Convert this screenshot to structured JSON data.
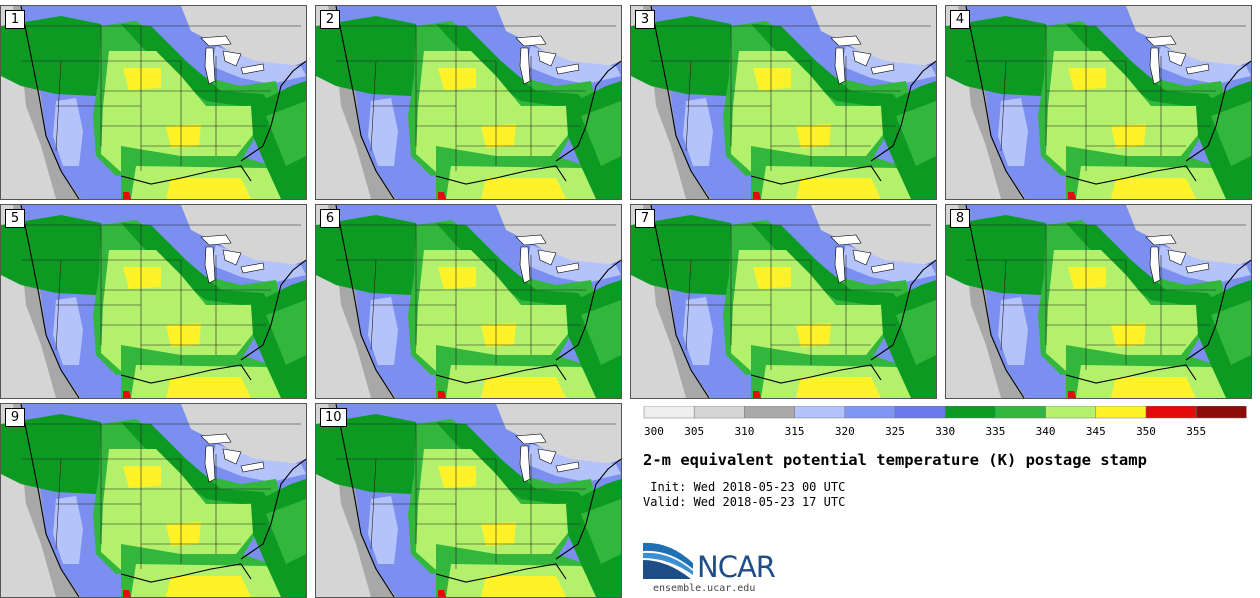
{
  "panels": [
    "1",
    "2",
    "3",
    "4",
    "5",
    "6",
    "7",
    "8",
    "9",
    "10"
  ],
  "colorbar": {
    "ticks": [
      "300",
      "305",
      "310",
      "315",
      "320",
      "325",
      "330",
      "335",
      "340",
      "345",
      "350",
      "355"
    ],
    "colors": [
      "#eeeeee",
      "#d5d5d5",
      "#a8a8a8",
      "#b4c3fa",
      "#8096f5",
      "#6879ea",
      "#0c9a23",
      "#33b63c",
      "#b3f16c",
      "#fff228",
      "#e60b0b",
      "#8c0b0b"
    ]
  },
  "title": "2-m equivalent potential temperature (K) postage stamp",
  "init_text": " Init: Wed 2018-05-23 00 UTC",
  "valid_text": "Valid: Wed 2018-05-23 17 UTC",
  "logo": {
    "text": "NCAR",
    "url": "ensemble.ucar.edu"
  },
  "map_colors": {
    "gray": "#a8a8a8",
    "lightgray": "#d5d5d5",
    "paleblue": "#b4c3fa",
    "blue": "#7b8ff0",
    "darkgreen": "#0c9a23",
    "green": "#33b63c",
    "lightgreen": "#b3f16c",
    "yellow": "#fff228",
    "red": "#e60b0b"
  }
}
